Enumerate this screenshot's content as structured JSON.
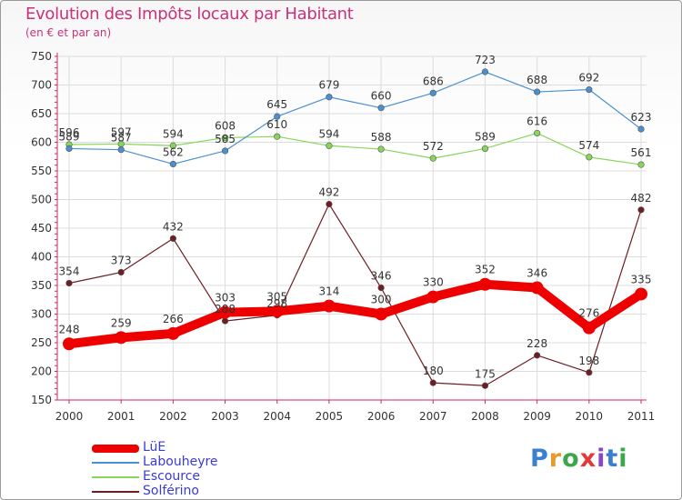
{
  "header": {
    "title": "Evolution des Impôts locaux par Habitant",
    "subtitle": "(en € et par an)"
  },
  "logo": {
    "text": "Proxiti"
  },
  "chart_data": {
    "type": "line",
    "title": "Evolution des Impôts locaux par Habitant",
    "subtitle": "(en € et par an)",
    "xlabel": "",
    "ylabel": "",
    "categories": [
      "2000",
      "2001",
      "2002",
      "2003",
      "2004",
      "2005",
      "2006",
      "2007",
      "2008",
      "2009",
      "2010",
      "2011"
    ],
    "y_ticks": [
      150,
      200,
      250,
      300,
      350,
      400,
      450,
      500,
      550,
      600,
      650,
      700,
      750
    ],
    "ylim": [
      150,
      750
    ],
    "grid": true,
    "legend_position": "bottom-left",
    "series": [
      {
        "name": "LüE",
        "color": "#ee0000",
        "width": "thick",
        "values": [
          248,
          259,
          266,
          303,
          305,
          314,
          300,
          330,
          352,
          346,
          276,
          335
        ]
      },
      {
        "name": "Labouheyre",
        "color": "#4a8fd0",
        "width": "thin",
        "values": [
          589,
          587,
          562,
          585,
          645,
          679,
          660,
          686,
          723,
          688,
          692,
          623
        ]
      },
      {
        "name": "Escource",
        "color": "#86d65a",
        "width": "thin",
        "values": [
          596,
          597,
          594,
          608,
          610,
          594,
          588,
          572,
          589,
          616,
          574,
          561
        ]
      },
      {
        "name": "Solférino",
        "color": "#6e1e23",
        "width": "thin",
        "values": [
          354,
          373,
          432,
          288,
          298,
          492,
          346,
          180,
          175,
          228,
          198,
          482
        ]
      }
    ]
  }
}
